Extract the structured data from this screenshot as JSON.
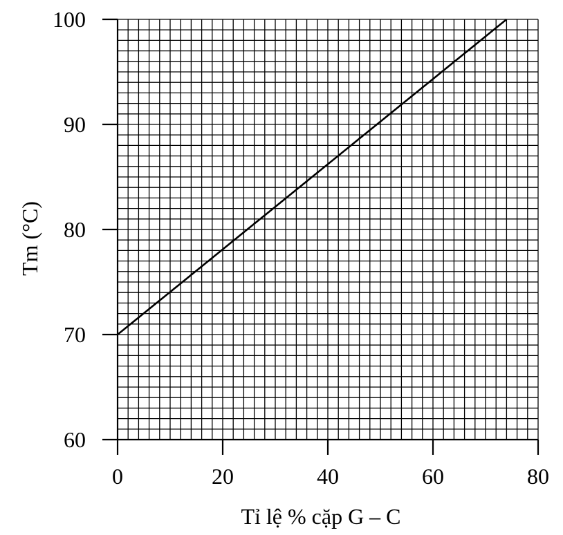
{
  "chart_data": {
    "type": "line",
    "title": "",
    "xlabel": "Tỉ lệ % cặp G – C",
    "ylabel": "Tm (°C)",
    "xlim": [
      0,
      80
    ],
    "ylim": [
      60,
      100
    ],
    "x_ticks": [
      "0",
      "20",
      "40",
      "60",
      "80"
    ],
    "y_ticks": [
      "60",
      "70",
      "80",
      "90",
      "100"
    ],
    "grid": true,
    "grid_minor_x_step": 2,
    "grid_minor_y_step": 1,
    "series": [
      {
        "x": [
          0,
          74
        ],
        "y": [
          70,
          100
        ]
      }
    ],
    "line_color": "#000000"
  }
}
